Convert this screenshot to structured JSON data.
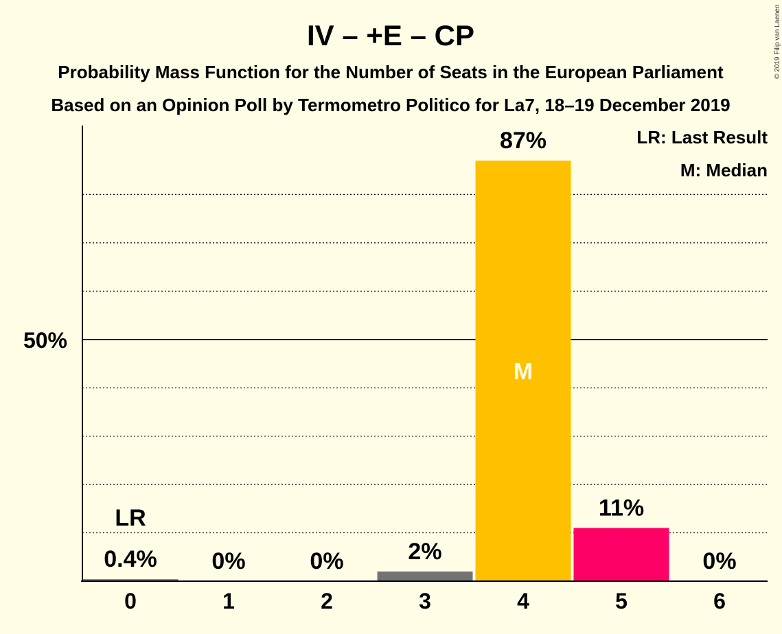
{
  "chart_data": {
    "type": "bar",
    "title": "IV – +E – CP",
    "subtitle_1": "Probability Mass Function for the Number of Seats in the European Parliament",
    "subtitle_2": "Based on an Opinion Poll by Termometro Politico for La7, 18–19 December 2019",
    "categories": [
      "0",
      "1",
      "2",
      "3",
      "4",
      "5",
      "6"
    ],
    "values": [
      0.4,
      0,
      0,
      2,
      87,
      11,
      0
    ],
    "value_labels": [
      "0.4%",
      "0%",
      "0%",
      "2%",
      "87%",
      "11%",
      "0%"
    ],
    "bar_colors": [
      "#737373",
      "#737373",
      "#737373",
      "#737373",
      "#ffc000",
      "#ff0066",
      "#737373"
    ],
    "ylim": [
      0,
      95
    ],
    "y_tick_labels": [
      {
        "value": 50,
        "label": "50%"
      }
    ],
    "grid_values": [
      10,
      20,
      30,
      40,
      60,
      70,
      80
    ],
    "last_result": {
      "category": "0",
      "marker": "LR"
    },
    "median": {
      "category": "4",
      "marker": "M"
    },
    "legend": [
      "LR: Last Result",
      "M: Median"
    ],
    "legend_position": "top-right",
    "copyright": "© 2019 Filip van Laenen"
  },
  "colors": {
    "background": "#fffde6",
    "median_bar": "#ffc000",
    "highlight_bar": "#ff0066",
    "default_bar": "#737373"
  }
}
